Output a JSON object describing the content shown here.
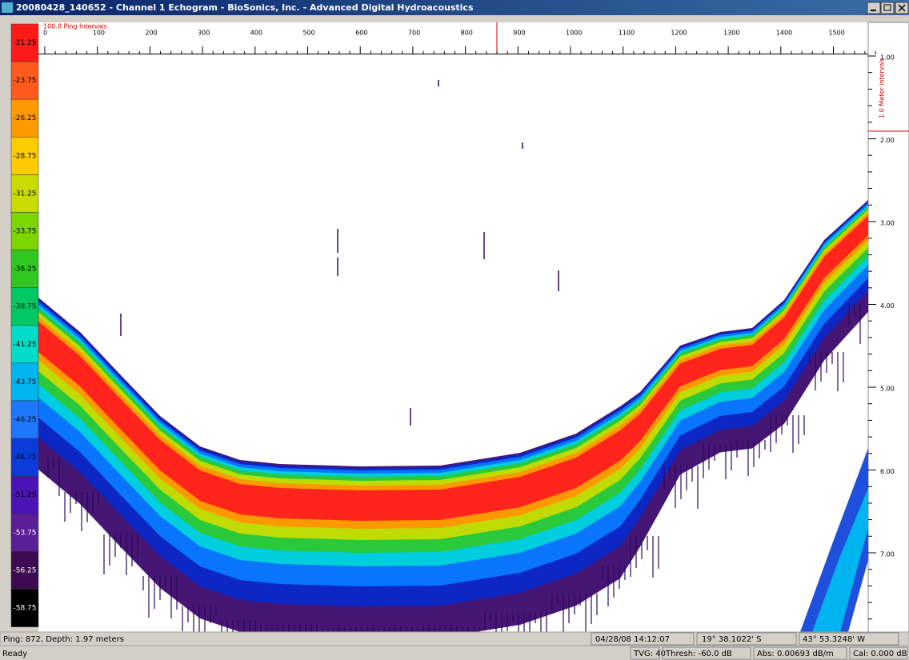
{
  "window": {
    "title": "20080428_140652 - Channel 1  Echogram - BioSonics, Inc. - Advanced Digital Hydroacoustics"
  },
  "color_scale": [
    "-21.25",
    "-23.75",
    "-26.25",
    "-28.75",
    "-31.25",
    "-33.75",
    "-36.25",
    "-38.75",
    "-41.25",
    "-43.75",
    "-46.25",
    "-48.75",
    "-51.25",
    "-53.75",
    "-56.25",
    "-58.75"
  ],
  "ping_ruler": {
    "label": "100.0 Ping Intervals",
    "ticks": [
      "0",
      "100",
      "200",
      "300",
      "400",
      "500",
      "600",
      "700",
      "800",
      "900",
      "1000",
      "1100",
      "1200",
      "1300",
      "1400",
      "1500"
    ]
  },
  "depth_ruler": {
    "label": "1.0 Meter intervals",
    "ticks": [
      "1.00",
      "2.00",
      "3.00",
      "4.00",
      "5.00",
      "6.00",
      "7.00"
    ]
  },
  "status": {
    "ping_depth": "Ping: 872, Depth: 1.97 meters",
    "datetime": "04/28/08 14:12:07",
    "latitude": "19° 38.1022' S",
    "longitude": "43° 53.3248' W"
  },
  "status_bar": {
    "ready": "Ready",
    "tvg": "TVG: 40",
    "thresh": "Thresh: -60.0 dB",
    "abs": "Abs: 0.00693 dB/m",
    "cal": "Cal: 0.000 dB"
  }
}
